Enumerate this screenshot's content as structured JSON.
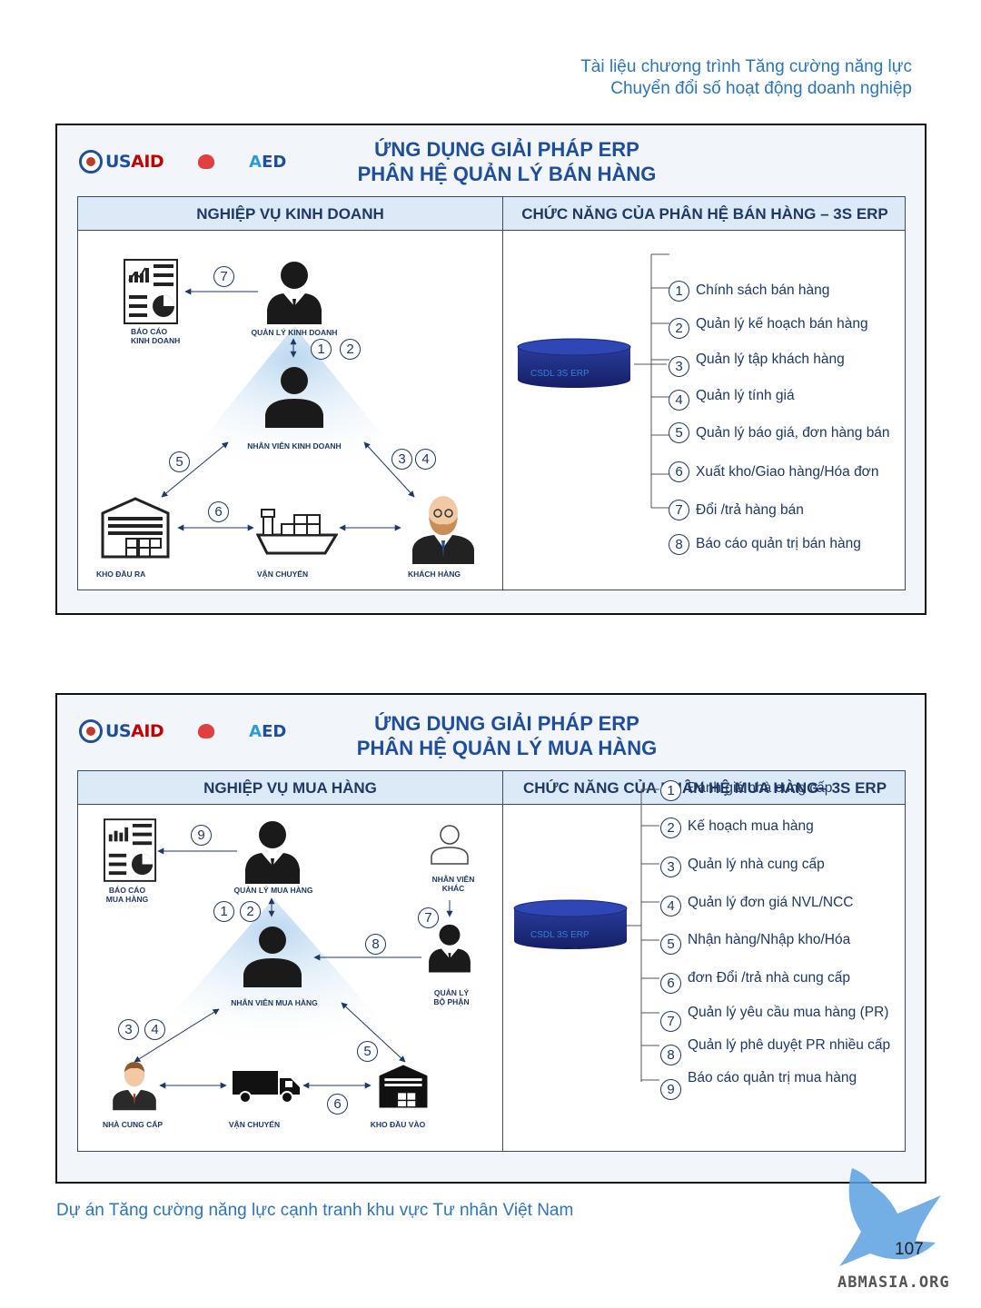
{
  "page": {
    "header_line1": "Tài liệu chương trình Tăng cường năng lực",
    "header_line2": "Chuyển đổi số hoạt động doanh nghiệp",
    "footer": "Dự án Tăng cường năng lực cạnh tranh khu vực Tư nhân Việt Nam",
    "page_number": "107",
    "watermark": "ABMASIA.ORG"
  },
  "logos": {
    "usaid_us": "US",
    "usaid_aid": "AID",
    "aed_a": "A",
    "aed_ed": "ED"
  },
  "sales": {
    "title_line1": "ỨNG DỤNG GIẢI PHÁP ERP",
    "title_line2": "PHÂN HỆ QUẢN LÝ BÁN HÀNG",
    "col_left": "NGHIỆP VỤ KINH DOANH",
    "col_right": "CHỨC NĂNG CỦA PHÂN HỆ BÁN HÀNG – 3S ERP",
    "nodes": {
      "report": "BÁO CÁO\nKINH DOANH",
      "manager": "QUẢN LÝ KINH DOANH",
      "staff": "NHÂN VIÊN KINH DOANH",
      "warehouse": "KHO ĐẦU RA",
      "shipping": "VẬN CHUYỂN",
      "customer": "KHÁCH HÀNG"
    },
    "flow_badges": [
      "7",
      "1",
      "2",
      "5",
      "3",
      "4",
      "6"
    ],
    "db_label": "CSDL 3S ERP",
    "functions": [
      {
        "num": "1",
        "label": "Chính sách bán hàng"
      },
      {
        "num": "2",
        "label": "Quản lý kế hoạch bán hàng"
      },
      {
        "num": "3",
        "label": "Quản lý tập khách hàng"
      },
      {
        "num": "4",
        "label": "Quản lý tính giá"
      },
      {
        "num": "5",
        "label": "Quản lý báo giá, đơn hàng bán"
      },
      {
        "num": "6",
        "label": "Xuất kho/Giao hàng/Hóa đơn"
      },
      {
        "num": "7",
        "label": "Đổi /trả hàng bán"
      },
      {
        "num": "8",
        "label": "Báo cáo quản trị bán hàng"
      }
    ]
  },
  "purchase": {
    "title_line1": "ỨNG DỤNG GIẢI PHÁP ERP",
    "title_line2": "PHÂN HỆ QUẢN LÝ MUA HÀNG",
    "col_left": "NGHIỆP VỤ MUA HÀNG",
    "col_right": "CHỨC NĂNG CỦA PHÂN HỆ MUA HÀNG– 3S ERP",
    "nodes": {
      "report": "BÁO CÁO\nMUA HÀNG",
      "manager": "QUẢN LÝ MUA HÀNG",
      "other_staff": "NHÂN VIÊN\nKHÁC",
      "dept_manager": "QUẢN LÝ\nBỘ PHẬN",
      "staff": "NHÂN VIÊN MUA HÀNG",
      "supplier": "NHÀ CUNG CẤP",
      "shipping": "VẬN CHUYỂN",
      "warehouse": "KHO ĐẦU VÀO"
    },
    "flow_badges": [
      "9",
      "1",
      "2",
      "7",
      "8",
      "3",
      "4",
      "5",
      "6"
    ],
    "db_label": "CSDL 3S ERP",
    "functions": [
      {
        "num": "1",
        "label": "Đánh giá nhà cung cấp"
      },
      {
        "num": "2",
        "label": "Kế hoạch mua hàng"
      },
      {
        "num": "3",
        "label": "Quản lý nhà cung cấp"
      },
      {
        "num": "4",
        "label": "Quản lý đơn giá NVL/NCC"
      },
      {
        "num": "5",
        "label": "Nhận    hàng/Nhập    kho/Hóa"
      },
      {
        "num": "6",
        "label": "đơn  Đổi /trả nhà cung cấp"
      },
      {
        "num": "7",
        "label": "Quản lý yêu cầu mua hàng (PR)"
      },
      {
        "num": "8",
        "label": "Quản lý phê duyệt PR nhiều cấp"
      },
      {
        "num": "9",
        "label": "Báo cáo quản trị mua hàng"
      }
    ]
  }
}
